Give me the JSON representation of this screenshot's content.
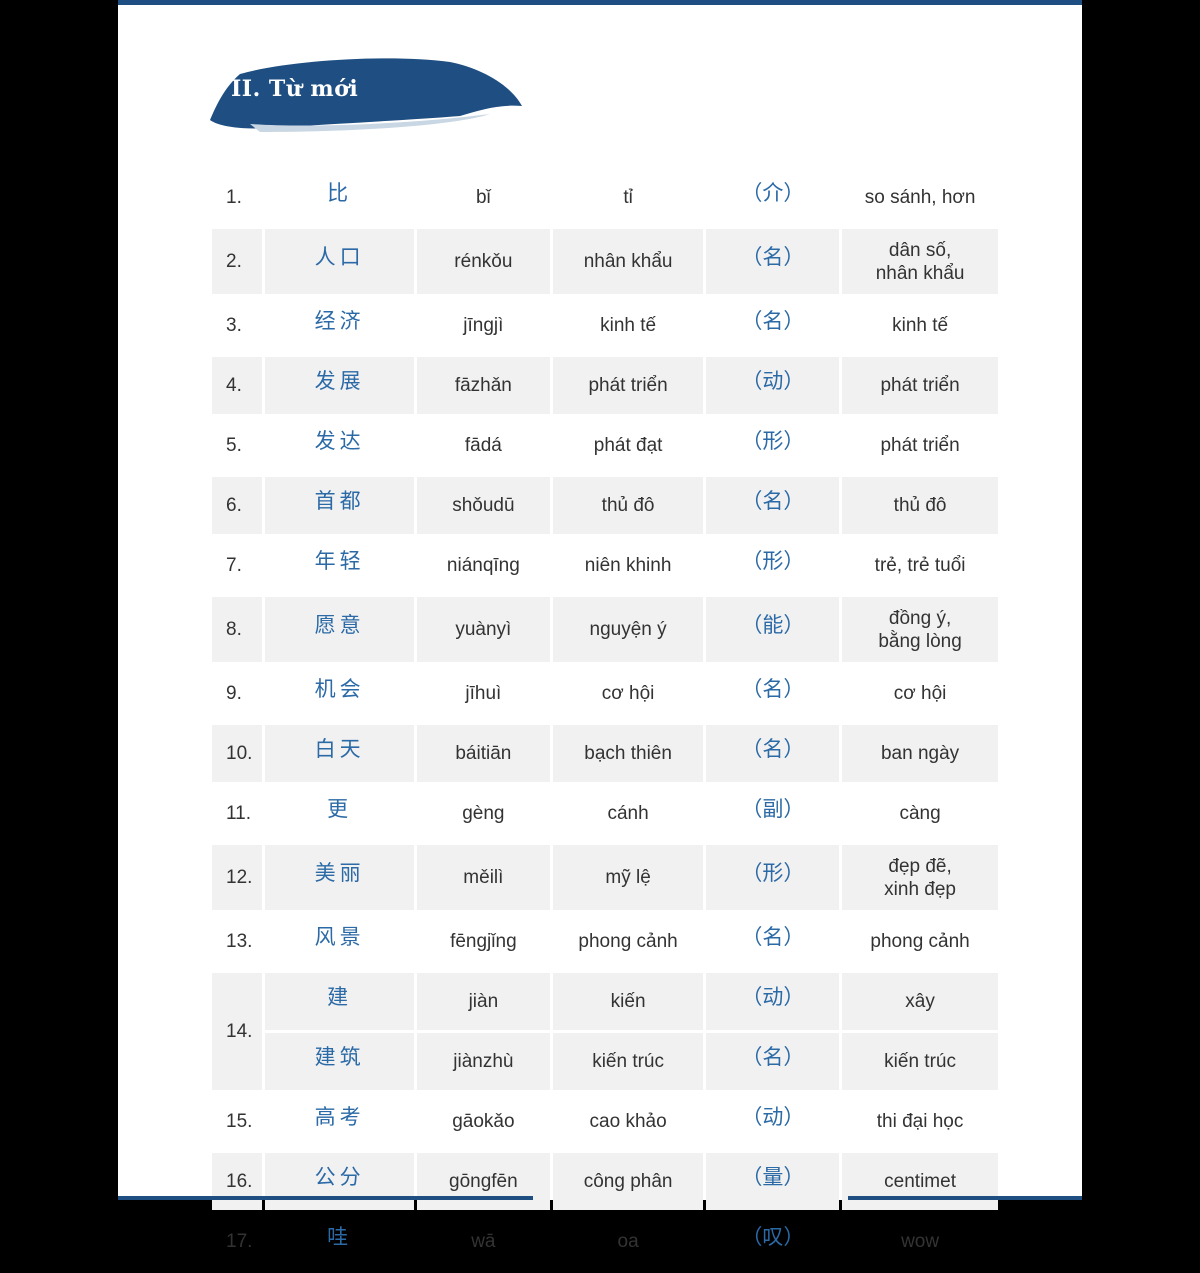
{
  "section_title": "II. Từ mới",
  "colors": {
    "accent": "#1f4f82",
    "chinese_text": "#2b6aa6",
    "row_shade": "#f1f1f2"
  },
  "rows": [
    {
      "num": "1.",
      "zh": "比",
      "py": "bǐ",
      "hv": "tỉ",
      "pos": "（介）",
      "mn": "so sánh, hơn"
    },
    {
      "num": "2.",
      "zh": "人口",
      "py": "rénkǒu",
      "hv": "nhân khẩu",
      "pos": "（名）",
      "mn": "dân số,\nnhân khẩu"
    },
    {
      "num": "3.",
      "zh": "经济",
      "py": "jīngjì",
      "hv": "kinh tế",
      "pos": "（名）",
      "mn": "kinh tế"
    },
    {
      "num": "4.",
      "zh": "发展",
      "py": "fāzhǎn",
      "hv": "phát triển",
      "pos": "（动）",
      "mn": "phát triển"
    },
    {
      "num": "5.",
      "zh": "发达",
      "py": "fādá",
      "hv": "phát đạt",
      "pos": "（形）",
      "mn": "phát triển"
    },
    {
      "num": "6.",
      "zh": "首都",
      "py": "shǒudū",
      "hv": "thủ đô",
      "pos": "（名）",
      "mn": "thủ đô"
    },
    {
      "num": "7.",
      "zh": "年轻",
      "py": "niánqīng",
      "hv": "niên khinh",
      "pos": "（形）",
      "mn": "trẻ, trẻ tuổi"
    },
    {
      "num": "8.",
      "zh": "愿意",
      "py": "yuànyì",
      "hv": "nguyện ý",
      "pos": "（能）",
      "mn": "đồng ý,\nbằng lòng"
    },
    {
      "num": "9.",
      "zh": "机会",
      "py": "jīhuì",
      "hv": "cơ hội",
      "pos": "（名）",
      "mn": "cơ hội"
    },
    {
      "num": "10.",
      "zh": "白天",
      "py": "báitiān",
      "hv": "bạch thiên",
      "pos": "（名）",
      "mn": "ban ngày"
    },
    {
      "num": "11.",
      "zh": "更",
      "py": "gèng",
      "hv": "cánh",
      "pos": "（副）",
      "mn": "càng"
    },
    {
      "num": "12.",
      "zh": "美丽",
      "py": "měilì",
      "hv": "mỹ lệ",
      "pos": "（形）",
      "mn": "đẹp đẽ,\nxinh đẹp"
    },
    {
      "num": "13.",
      "zh": "风景",
      "py": "fēngjǐng",
      "hv": "phong cảnh",
      "pos": "（名）",
      "mn": "phong cảnh"
    },
    {
      "num": "14.",
      "zh": "建",
      "py": "jiàn",
      "hv": "kiến",
      "pos": "（动）",
      "mn": "xây"
    },
    {
      "num": "",
      "zh": "建筑",
      "py": "jiànzhù",
      "hv": "kiến trúc",
      "pos": "（名）",
      "mn": "kiến trúc"
    },
    {
      "num": "15.",
      "zh": "高考",
      "py": "gāokǎo",
      "hv": "cao khảo",
      "pos": "（动）",
      "mn": "thi đại học"
    },
    {
      "num": "16.",
      "zh": "公分",
      "py": "gōngfēn",
      "hv": "công phân",
      "pos": "（量）",
      "mn": "centimet"
    },
    {
      "num": "17.",
      "zh": "哇",
      "py": "wā",
      "hv": "oa",
      "pos": "（叹）",
      "mn": "wow"
    }
  ]
}
